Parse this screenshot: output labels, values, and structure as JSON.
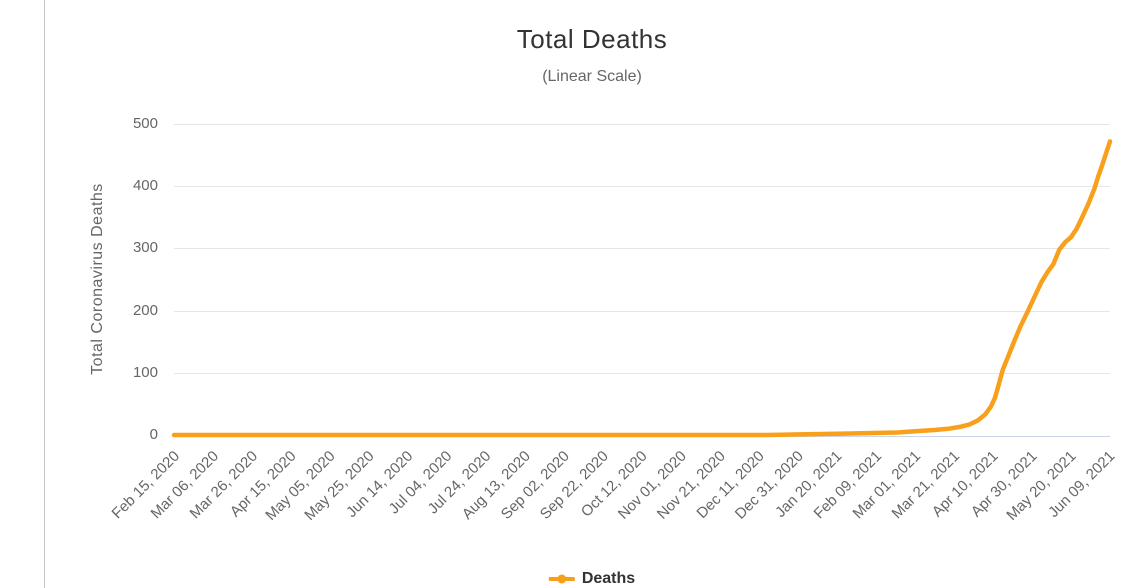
{
  "page": {
    "background": "#ffffff",
    "divider_color": "#c6c6c6"
  },
  "chart_data": {
    "type": "line",
    "title": "Total Deaths",
    "subtitle": "(Linear Scale)",
    "xlabel": "",
    "ylabel": "Total Coronavirus Deaths",
    "ylim": [
      0,
      500
    ],
    "yticks": [
      0,
      100,
      200,
      300,
      400,
      500
    ],
    "x_start": "2020-02-15",
    "x_end": "2021-06-09",
    "xtick_labels": [
      "Feb 15, 2020",
      "Mar 06, 2020",
      "Mar 26, 2020",
      "Apr 15, 2020",
      "May 05, 2020",
      "May 25, 2020",
      "Jun 14, 2020",
      "Jul 04, 2020",
      "Jul 24, 2020",
      "Aug 13, 2020",
      "Sep 02, 2020",
      "Sep 22, 2020",
      "Oct 12, 2020",
      "Nov 01, 2020",
      "Nov 21, 2020",
      "Dec 11, 2020",
      "Dec 31, 2020",
      "Jan 20, 2021",
      "Feb 09, 2021",
      "Mar 01, 2021",
      "Mar 21, 2021",
      "Apr 10, 2021",
      "Apr 30, 2021",
      "May 20, 2021",
      "Jun 09, 2021"
    ],
    "grid": "horizontal-only",
    "gridline_color": "#e6e6e6",
    "axis_line_color": "#ccd6eb",
    "legend_position": "bottom-center",
    "series": [
      {
        "name": "Deaths",
        "color": "#f8a01c",
        "points": [
          [
            "2020-02-15",
            0
          ],
          [
            "2020-03-15",
            0
          ],
          [
            "2020-04-15",
            0
          ],
          [
            "2020-05-15",
            0
          ],
          [
            "2020-06-15",
            0
          ],
          [
            "2020-07-15",
            0
          ],
          [
            "2020-08-15",
            0
          ],
          [
            "2020-09-15",
            0
          ],
          [
            "2020-10-15",
            0
          ],
          [
            "2020-11-15",
            0
          ],
          [
            "2020-12-15",
            0
          ],
          [
            "2021-01-01",
            1
          ],
          [
            "2021-01-20",
            2
          ],
          [
            "2021-02-05",
            3
          ],
          [
            "2021-02-20",
            4
          ],
          [
            "2021-03-01",
            6
          ],
          [
            "2021-03-11",
            8
          ],
          [
            "2021-03-18",
            10
          ],
          [
            "2021-03-24",
            13
          ],
          [
            "2021-03-29",
            17
          ],
          [
            "2021-04-02",
            23
          ],
          [
            "2021-04-06",
            33
          ],
          [
            "2021-04-09",
            46
          ],
          [
            "2021-04-11",
            60
          ],
          [
            "2021-04-13",
            82
          ],
          [
            "2021-04-15",
            105
          ],
          [
            "2021-04-18",
            128
          ],
          [
            "2021-04-21",
            152
          ],
          [
            "2021-04-24",
            174
          ],
          [
            "2021-04-28",
            200
          ],
          [
            "2021-05-02",
            227
          ],
          [
            "2021-05-05",
            247
          ],
          [
            "2021-05-08",
            262
          ],
          [
            "2021-05-11",
            275
          ],
          [
            "2021-05-14",
            298
          ],
          [
            "2021-05-17",
            310
          ],
          [
            "2021-05-20",
            318
          ],
          [
            "2021-05-23",
            332
          ],
          [
            "2021-05-26",
            352
          ],
          [
            "2021-05-29",
            372
          ],
          [
            "2021-06-01",
            396
          ],
          [
            "2021-06-03",
            416
          ],
          [
            "2021-06-05",
            434
          ],
          [
            "2021-06-07",
            453
          ],
          [
            "2021-06-09",
            472
          ]
        ]
      }
    ]
  }
}
